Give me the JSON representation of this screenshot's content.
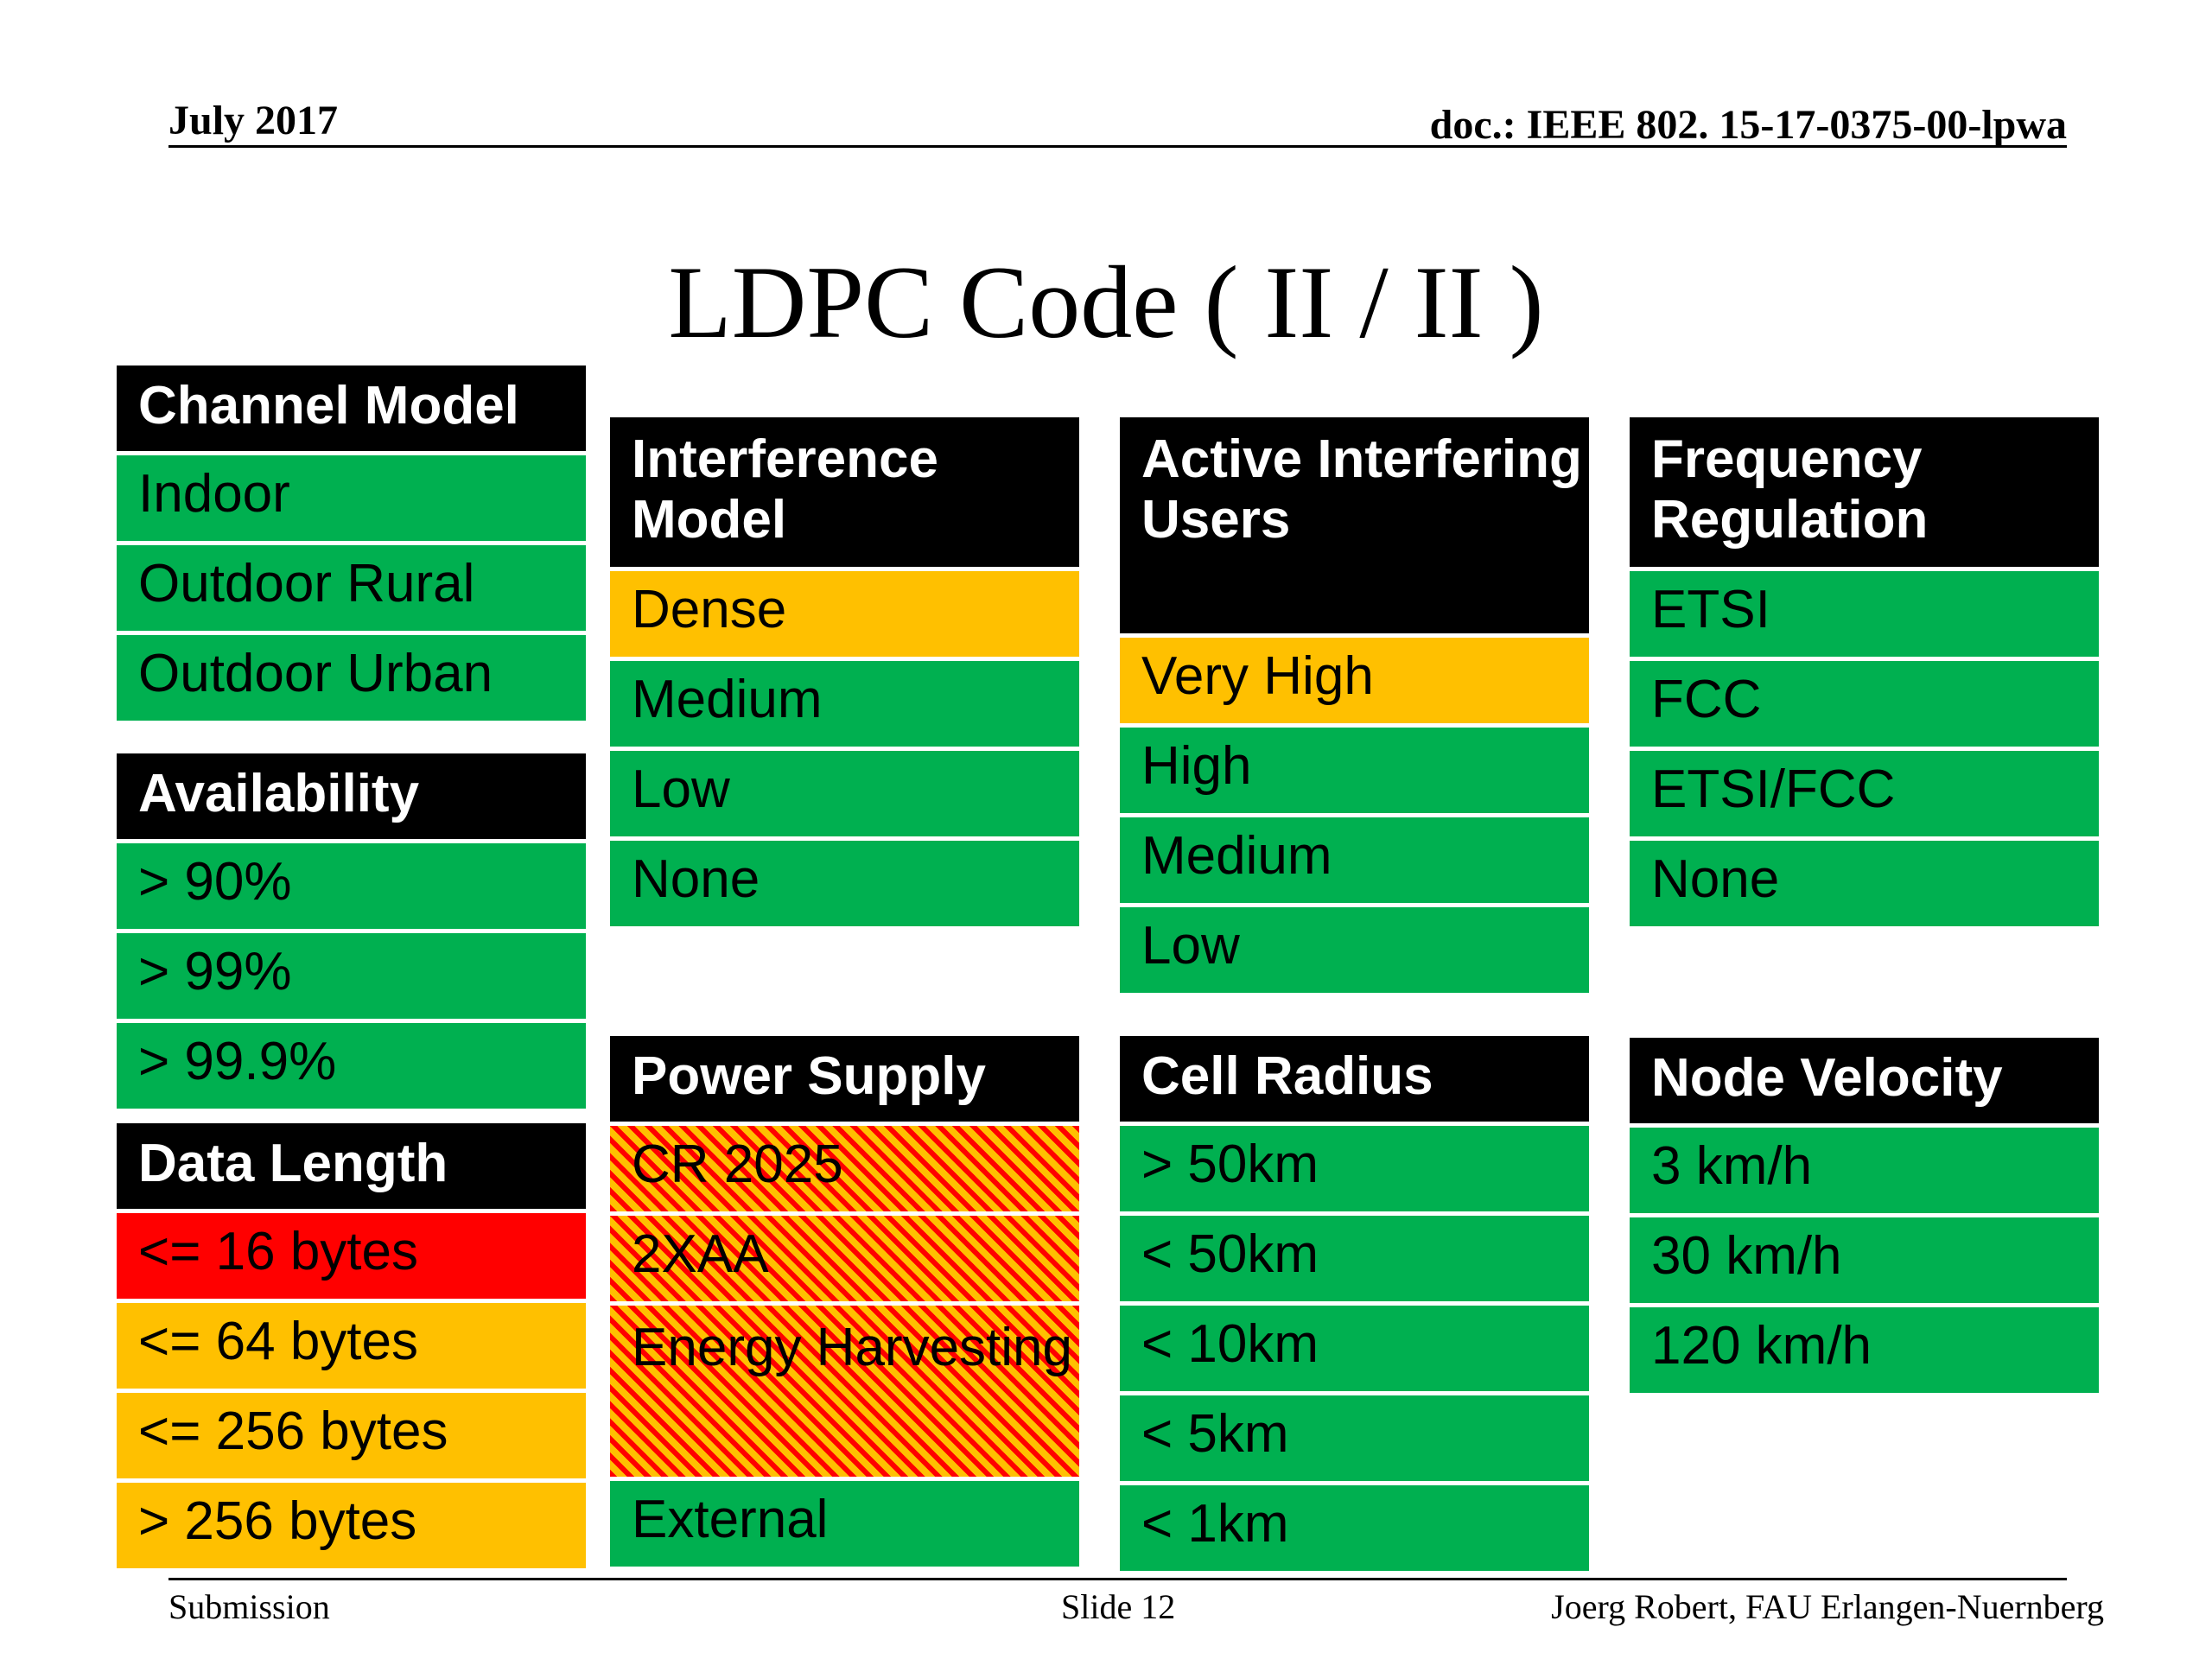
{
  "header": {
    "date": "July 2017",
    "doc": "doc.: IEEE 802. 15-17-0375-00-lpwa"
  },
  "title": "LDPC Code ( II / II )",
  "footer": {
    "left": "Submission",
    "center": "Slide 12",
    "right": "Joerg Robert, FAU Erlangen-Nuernberg"
  },
  "colors": {
    "green": "#00b050",
    "orange": "#ffc000",
    "red": "#ff0000",
    "header": "#000000"
  },
  "tables": {
    "channel_model": {
      "title": "Channel Model",
      "items": [
        {
          "label": "Indoor",
          "status": "green"
        },
        {
          "label": "Outdoor Rural",
          "status": "green"
        },
        {
          "label": "Outdoor Urban",
          "status": "green"
        }
      ]
    },
    "availability": {
      "title": "Availability",
      "items": [
        {
          "label": "> 90%",
          "status": "green"
        },
        {
          "label": "> 99%",
          "status": "green"
        },
        {
          "label": "> 99.9%",
          "status": "green"
        }
      ]
    },
    "data_length": {
      "title": "Data Length",
      "items": [
        {
          "label": "<= 16 bytes",
          "status": "red"
        },
        {
          "label": "<= 64 bytes",
          "status": "orange"
        },
        {
          "label": "<= 256 bytes",
          "status": "orange"
        },
        {
          "label": "> 256 bytes",
          "status": "orange"
        }
      ]
    },
    "interference_model": {
      "title": "Interference Model",
      "items": [
        {
          "label": "Dense",
          "status": "orange"
        },
        {
          "label": "Medium",
          "status": "green"
        },
        {
          "label": "Low",
          "status": "green"
        },
        {
          "label": "None",
          "status": "green"
        }
      ]
    },
    "power_supply": {
      "title": "Power Supply",
      "items": [
        {
          "label": "CR 2025",
          "status": "hatched red/orange"
        },
        {
          "label": "2XAA",
          "status": "hatched red/orange"
        },
        {
          "label": "Energy Harvesting",
          "status": "hatched red/orange"
        },
        {
          "label": "External",
          "status": "green"
        }
      ]
    },
    "active_interfering_users": {
      "title": "Active Interfering Users",
      "items": [
        {
          "label": "Very High",
          "status": "orange"
        },
        {
          "label": "High",
          "status": "green"
        },
        {
          "label": "Medium",
          "status": "green"
        },
        {
          "label": "Low",
          "status": "green"
        }
      ]
    },
    "cell_radius": {
      "title": "Cell Radius",
      "items": [
        {
          "label": "> 50km",
          "status": "green"
        },
        {
          "label": "< 50km",
          "status": "green"
        },
        {
          "label": "< 10km",
          "status": "green"
        },
        {
          "label": "< 5km",
          "status": "green"
        },
        {
          "label": "< 1km",
          "status": "green"
        }
      ]
    },
    "frequency_regulation": {
      "title": "Frequency Regulation",
      "items": [
        {
          "label": "ETSI",
          "status": "green"
        },
        {
          "label": "FCC",
          "status": "green"
        },
        {
          "label": "ETSI/FCC",
          "status": "green"
        },
        {
          "label": "None",
          "status": "green"
        }
      ]
    },
    "node_velocity": {
      "title": "Node Velocity",
      "items": [
        {
          "label": "3 km/h",
          "status": "green"
        },
        {
          "label": "30 km/h",
          "status": "green"
        },
        {
          "label": "120 km/h",
          "status": "green"
        }
      ]
    }
  }
}
